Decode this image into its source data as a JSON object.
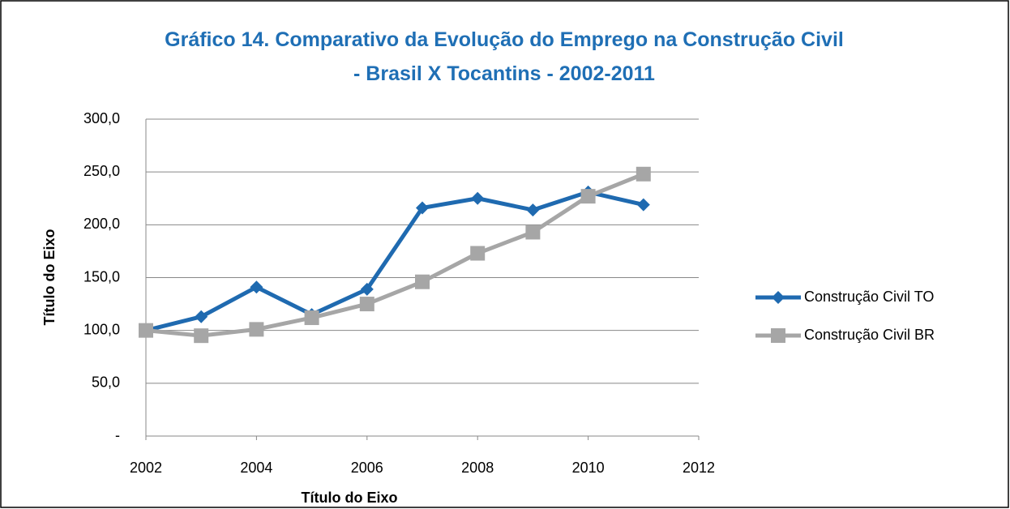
{
  "chart_data": {
    "type": "line",
    "title": "Gráfico 14. Comparativo da Evolução do Emprego na Construção Civil - Brasil X Tocantins - 2002-2011",
    "xlabel": "Título do Eixo",
    "ylabel": "Título do Eixo",
    "x": [
      2002,
      2003,
      2004,
      2005,
      2006,
      2007,
      2008,
      2009,
      2010,
      2011
    ],
    "series": [
      {
        "name": "Construção Civil TO",
        "color": "#1F6AB0",
        "marker": "diamond",
        "values": [
          100,
          113,
          141,
          115,
          139,
          216,
          225,
          214,
          231,
          219
        ]
      },
      {
        "name": "Construção Civil BR",
        "color": "#A6A6A6",
        "marker": "square",
        "values": [
          100,
          95,
          101,
          112,
          125,
          146,
          173,
          193,
          227,
          248
        ]
      }
    ],
    "xlim": [
      2002,
      2012
    ],
    "xticks": [
      2002,
      2004,
      2006,
      2008,
      2010,
      2012
    ],
    "ylim": [
      0,
      300
    ],
    "yticks": [
      {
        "value": 0,
        "label": "-"
      },
      {
        "value": 50,
        "label": "50,0"
      },
      {
        "value": 100,
        "label": "100,0"
      },
      {
        "value": 150,
        "label": "150,0"
      },
      {
        "value": 200,
        "label": "200,0"
      },
      {
        "value": 250,
        "label": "250,0"
      },
      {
        "value": 300,
        "label": "300,0"
      }
    ],
    "grid": true,
    "legend": "right"
  }
}
